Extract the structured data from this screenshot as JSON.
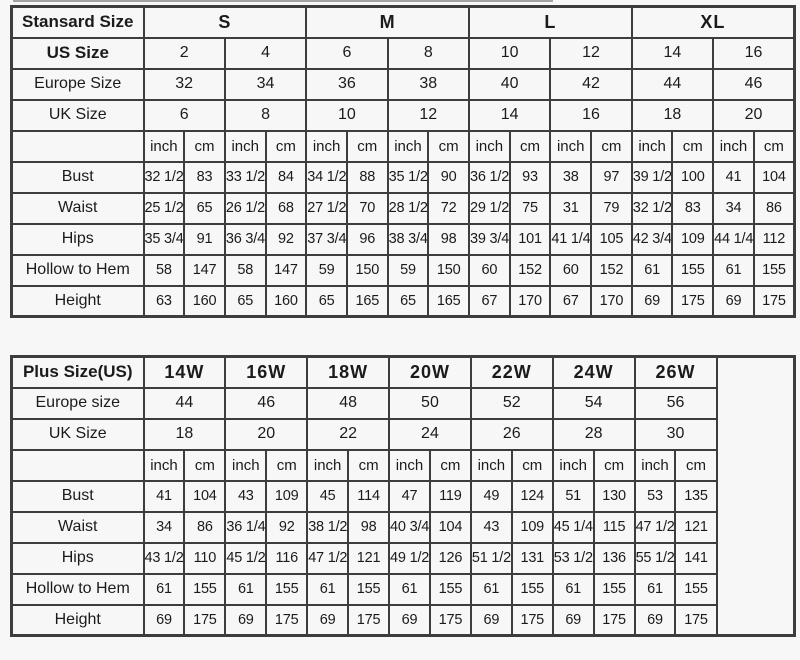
{
  "colors": {
    "border": "#3d3d3d",
    "text": "#1b1b1b",
    "background": "#f7f7f7"
  },
  "standard_table": {
    "header_label": "Stansard Size",
    "size_groups": [
      "S",
      "M",
      "L",
      "XL"
    ],
    "span_rows": [
      {
        "label": "US Size",
        "bold": true,
        "values": [
          "2",
          "4",
          "6",
          "8",
          "10",
          "12",
          "14",
          "16"
        ]
      },
      {
        "label": "Europe Size",
        "bold": false,
        "values": [
          "32",
          "34",
          "36",
          "38",
          "40",
          "42",
          "44",
          "46"
        ]
      },
      {
        "label": "UK Size",
        "bold": false,
        "values": [
          "6",
          "8",
          "10",
          "12",
          "14",
          "16",
          "18",
          "20"
        ]
      }
    ],
    "units": [
      "inch",
      "cm"
    ],
    "measure_rows": [
      {
        "label": "Bust",
        "values": [
          "32 1/2",
          "83",
          "33 1/2",
          "84",
          "34 1/2",
          "88",
          "35 1/2",
          "90",
          "36 1/2",
          "93",
          "38",
          "97",
          "39 1/2",
          "100",
          "41",
          "104"
        ]
      },
      {
        "label": "Waist",
        "values": [
          "25 1/2",
          "65",
          "26 1/2",
          "68",
          "27 1/2",
          "70",
          "28 1/2",
          "72",
          "29 1/2",
          "75",
          "31",
          "79",
          "32 1/2",
          "83",
          "34",
          "86"
        ]
      },
      {
        "label": "Hips",
        "values": [
          "35 3/4",
          "91",
          "36 3/4",
          "92",
          "37 3/4",
          "96",
          "38 3/4",
          "98",
          "39 3/4",
          "101",
          "41 1/4",
          "105",
          "42 3/4",
          "109",
          "44 1/4",
          "112"
        ]
      },
      {
        "label": "Hollow to Hem",
        "values": [
          "58",
          "147",
          "58",
          "147",
          "59",
          "150",
          "59",
          "150",
          "60",
          "152",
          "60",
          "152",
          "61",
          "155",
          "61",
          "155"
        ]
      },
      {
        "label": "Height",
        "values": [
          "63",
          "160",
          "65",
          "160",
          "65",
          "165",
          "65",
          "165",
          "67",
          "170",
          "67",
          "170",
          "69",
          "175",
          "69",
          "175"
        ]
      }
    ]
  },
  "plus_table": {
    "header_label": "Plus Size(US)",
    "size_groups": [
      "14W",
      "16W",
      "18W",
      "20W",
      "22W",
      "24W",
      "26W"
    ],
    "span_rows": [
      {
        "label": "Europe size",
        "bold": false,
        "values": [
          "44",
          "46",
          "48",
          "50",
          "52",
          "54",
          "56"
        ]
      },
      {
        "label": "UK Size",
        "bold": false,
        "values": [
          "18",
          "20",
          "22",
          "24",
          "26",
          "28",
          "30"
        ]
      }
    ],
    "units": [
      "inch",
      "cm"
    ],
    "measure_rows": [
      {
        "label": "Bust",
        "values": [
          "41",
          "104",
          "43",
          "109",
          "45",
          "114",
          "47",
          "119",
          "49",
          "124",
          "51",
          "130",
          "53",
          "135"
        ]
      },
      {
        "label": "Waist",
        "values": [
          "34",
          "86",
          "36 1/4",
          "92",
          "38 1/2",
          "98",
          "40 3/4",
          "104",
          "43",
          "109",
          "45 1/4",
          "115",
          "47 1/2",
          "121"
        ]
      },
      {
        "label": "Hips",
        "values": [
          "43 1/2",
          "110",
          "45 1/2",
          "116",
          "47 1/2",
          "121",
          "49 1/2",
          "126",
          "51 1/2",
          "131",
          "53 1/2",
          "136",
          "55 1/2",
          "141"
        ]
      },
      {
        "label": "Hollow to Hem",
        "values": [
          "61",
          "155",
          "61",
          "155",
          "61",
          "155",
          "61",
          "155",
          "61",
          "155",
          "61",
          "155",
          "61",
          "155"
        ]
      },
      {
        "label": "Height",
        "values": [
          "69",
          "175",
          "69",
          "175",
          "69",
          "175",
          "69",
          "175",
          "69",
          "175",
          "69",
          "175",
          "69",
          "175"
        ]
      }
    ]
  }
}
